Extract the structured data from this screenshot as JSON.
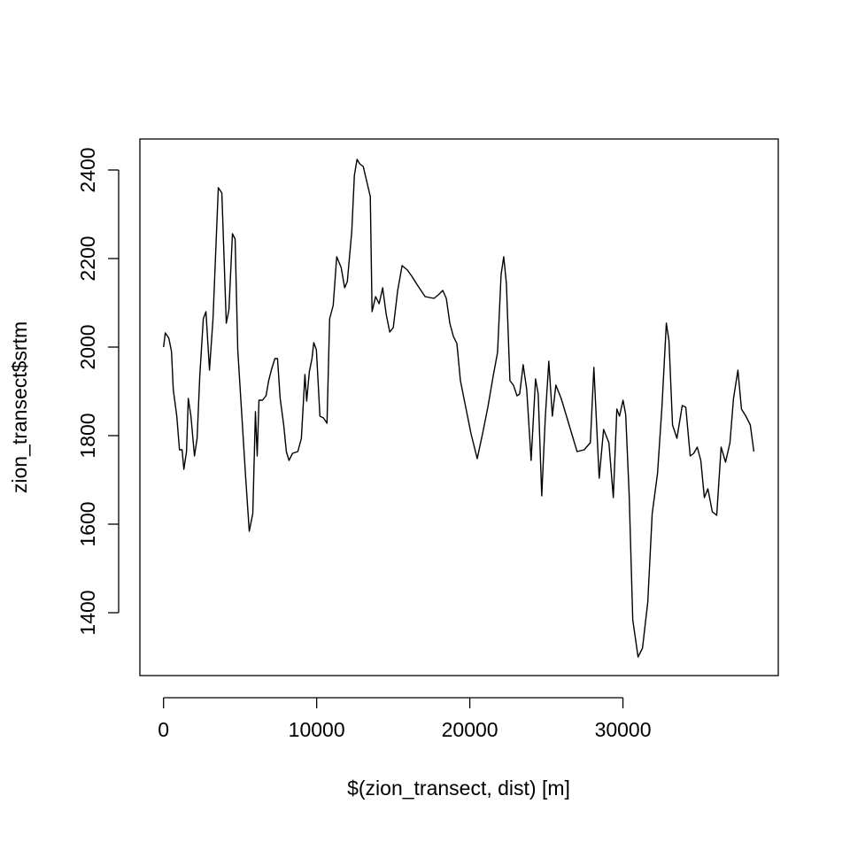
{
  "chart_data": {
    "type": "line",
    "x_label": "$(zion_transect, dist) [m]",
    "y_label": "zion_transect$srtm",
    "color": "#000000",
    "xlim": [
      -1544,
      40144
    ],
    "xticks": [
      0,
      10000,
      20000,
      30000
    ],
    "ylim": [
      1258,
      2470
    ],
    "yticks": [
      1400,
      1600,
      1800,
      2000,
      2200,
      2400
    ],
    "grid": false,
    "x": [
      0,
      115,
      346,
      520,
      635,
      865,
      1040,
      1212,
      1327,
      1500,
      1616,
      1789,
      2020,
      2193,
      2366,
      2597,
      2770,
      3000,
      3231,
      3577,
      3808,
      4097,
      4270,
      4500,
      4674,
      4847,
      5078,
      5366,
      5597,
      5828,
      6001,
      6116,
      6232,
      6463,
      6693,
      6866,
      7039,
      7270,
      7443,
      7616,
      7847,
      8020,
      8193,
      8424,
      8770,
      9001,
      9232,
      9347,
      9520,
      9693,
      9809,
      9982,
      10212,
      10443,
      10674,
      10847,
      11078,
      11309,
      11597,
      11828,
      12001,
      12290,
      12463,
      12636,
      12809,
      13040,
      13271,
      13502,
      13617,
      13848,
      14079,
      14310,
      14540,
      14771,
      15002,
      15291,
      15579,
      15926,
      16214,
      16503,
      17080,
      17657,
      17945,
      18234,
      18465,
      18696,
      18927,
      19158,
      19388,
      19734,
      20081,
      20484,
      20831,
      21177,
      21523,
      21812,
      22043,
      22216,
      22389,
      22620,
      22850,
      23081,
      23254,
      23485,
      23716,
      24004,
      24293,
      24466,
      24697,
      24928,
      25159,
      25390,
      25620,
      25967,
      26313,
      26659,
      27006,
      27467,
      27871,
      28102,
      28448,
      28736,
      29083,
      29371,
      29602,
      29775,
      30006,
      30179,
      30410,
      30641,
      30987,
      31276,
      31622,
      31911,
      32257,
      32546,
      32834,
      33007,
      33238,
      33526,
      33873,
      34104,
      34392,
      34623,
      34854,
      35085,
      35316,
      35547,
      35835,
      36124,
      36412,
      36701,
      36989,
      37220,
      37509,
      37740,
      38028,
      38317,
      38548
    ],
    "values": [
      2000,
      2032,
      2020,
      1990,
      1904,
      1844,
      1768,
      1768,
      1724,
      1764,
      1884,
      1844,
      1754,
      1794,
      1934,
      2064,
      2080,
      1948,
      2064,
      2360,
      2348,
      2054,
      2084,
      2256,
      2244,
      1994,
      1864,
      1704,
      1584,
      1624,
      1854,
      1754,
      1880,
      1880,
      1890,
      1924,
      1948,
      1974,
      1974,
      1884,
      1824,
      1764,
      1744,
      1760,
      1764,
      1794,
      1938,
      1878,
      1944,
      1974,
      2010,
      1994,
      1844,
      1840,
      1828,
      2064,
      2094,
      2204,
      2180,
      2134,
      2148,
      2260,
      2388,
      2424,
      2414,
      2408,
      2374,
      2340,
      2080,
      2114,
      2098,
      2134,
      2074,
      2034,
      2044,
      2128,
      2184,
      2174,
      2160,
      2144,
      2114,
      2110,
      2118,
      2128,
      2110,
      2054,
      2024,
      2008,
      1924,
      1864,
      1804,
      1748,
      1804,
      1864,
      1934,
      1988,
      2164,
      2204,
      2144,
      1924,
      1914,
      1890,
      1894,
      1960,
      1904,
      1744,
      1928,
      1894,
      1664,
      1840,
      1968,
      1844,
      1914,
      1884,
      1844,
      1804,
      1764,
      1768,
      1784,
      1954,
      1704,
      1814,
      1784,
      1660,
      1860,
      1844,
      1880,
      1848,
      1664,
      1384,
      1300,
      1320,
      1424,
      1624,
      1714,
      1864,
      2054,
      2014,
      1824,
      1794,
      1868,
      1864,
      1754,
      1760,
      1774,
      1744,
      1660,
      1680,
      1628,
      1620,
      1774,
      1740,
      1784,
      1884,
      1948,
      1860,
      1844,
      1824,
      1764
    ]
  }
}
